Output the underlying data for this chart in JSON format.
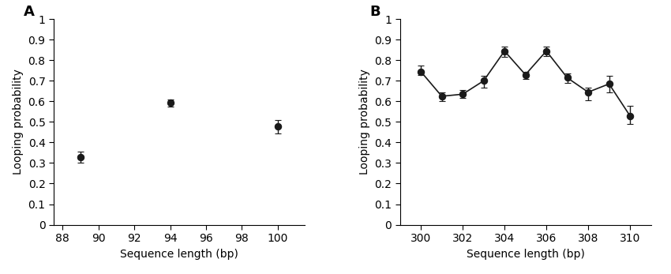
{
  "panel_A": {
    "x": [
      89,
      94,
      100
    ],
    "y": [
      0.33,
      0.595,
      0.48
    ],
    "yerr_lo": [
      0.03,
      0.02,
      0.035
    ],
    "yerr_hi": [
      0.025,
      0.015,
      0.03
    ],
    "xlim": [
      87.5,
      101.5
    ],
    "xticks": [
      88,
      90,
      92,
      94,
      96,
      98,
      100
    ],
    "xlabel": "Sequence length (bp)",
    "ylabel": "Looping probability",
    "label": "A",
    "connected": false
  },
  "panel_B": {
    "x": [
      300,
      301,
      302,
      303,
      304,
      305,
      306,
      307,
      308,
      309,
      310
    ],
    "y": [
      0.745,
      0.625,
      0.635,
      0.7,
      0.845,
      0.73,
      0.845,
      0.715,
      0.645,
      0.685,
      0.53
    ],
    "yerr_lo": [
      0.015,
      0.025,
      0.02,
      0.035,
      0.03,
      0.02,
      0.025,
      0.025,
      0.04,
      0.04,
      0.04
    ],
    "yerr_hi": [
      0.03,
      0.02,
      0.02,
      0.025,
      0.02,
      0.015,
      0.02,
      0.02,
      0.02,
      0.04,
      0.05
    ],
    "xlim": [
      299,
      311
    ],
    "xticks": [
      300,
      302,
      304,
      306,
      308,
      310
    ],
    "xlabel": "Sequence length (bp)",
    "ylabel": "Looping probability",
    "label": "B",
    "connected": true
  },
  "ylim": [
    0,
    1
  ],
  "yticks": [
    0,
    0.1,
    0.2,
    0.3,
    0.4,
    0.5,
    0.6,
    0.7,
    0.8,
    0.9,
    1
  ],
  "ytick_labels": [
    "0",
    "0.1",
    "0.2",
    "0.3",
    "0.4",
    "0.5",
    "0.6",
    "0.7",
    "0.8",
    "0.9",
    "1"
  ],
  "marker": "o",
  "markersize": 6,
  "color": "#1a1a1a",
  "capsize": 3,
  "linewidth": 1.2,
  "elinewidth": 1.0,
  "background_color": "#ffffff"
}
